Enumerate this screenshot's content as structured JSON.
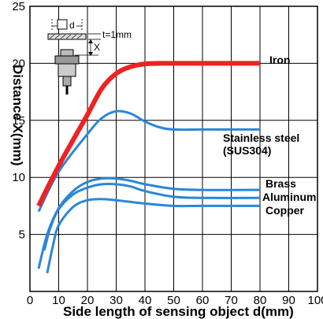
{
  "chart_data": {
    "type": "line",
    "xlabel": "Side length of sensing object d(mm)",
    "ylabel": "Distance X(mm)",
    "xlim": [
      0,
      100
    ],
    "ylim": [
      0,
      25
    ],
    "x_ticks": [
      "0",
      "10",
      "20",
      "30",
      "40",
      "50",
      "60",
      "70",
      "80",
      "90",
      "100"
    ],
    "y_ticks": [
      "5",
      "10",
      "15",
      "20",
      "25"
    ],
    "grid": true,
    "series": [
      {
        "name": "Iron",
        "color": "#ee2222",
        "x": [
          3,
          10,
          20,
          25,
          30,
          35,
          40,
          45,
          50,
          60,
          70,
          80
        ],
        "y": [
          7.5,
          11,
          15.5,
          17.8,
          19.1,
          19.7,
          19.95,
          20,
          20,
          20,
          20,
          20
        ]
      },
      {
        "name": "Stainless steel (SUS304)",
        "color": "#2b86d8",
        "x": [
          3,
          10,
          20,
          25,
          30,
          35,
          40,
          45,
          50,
          60,
          70,
          80
        ],
        "y": [
          7,
          10.5,
          13.8,
          15.2,
          15.8,
          15.6,
          14.9,
          14.4,
          14.2,
          14.2,
          14.2,
          14.2
        ]
      },
      {
        "name": "Brass",
        "color": "#2b86d8",
        "x": [
          3,
          6,
          10,
          15,
          20,
          25,
          30,
          35,
          40,
          50,
          60,
          80
        ],
        "y": [
          2,
          5,
          7.3,
          8.8,
          9.6,
          9.9,
          9.9,
          9.7,
          9.4,
          9.0,
          8.9,
          8.9
        ]
      },
      {
        "name": "Aluminum",
        "color": "#2b86d8",
        "x": [
          5,
          7,
          10,
          15,
          20,
          25,
          30,
          35,
          40,
          50,
          60,
          80
        ],
        "y": [
          3.6,
          5.5,
          7.2,
          8.5,
          9.1,
          9.4,
          9.4,
          9.2,
          8.8,
          8.3,
          8.2,
          8.2
        ]
      },
      {
        "name": "Copper",
        "color": "#2b86d8",
        "x": [
          6,
          8,
          10,
          15,
          20,
          25,
          30,
          40,
          50,
          60,
          80
        ],
        "y": [
          1.6,
          4.0,
          5.8,
          7.4,
          8.0,
          8.1,
          8.0,
          7.7,
          7.5,
          7.5,
          7.5
        ]
      }
    ],
    "labels": {
      "iron": "Iron",
      "stainless_1": "Stainless steel",
      "stainless_2": "(SUS304)",
      "brass": "Brass",
      "aluminum": "Aluminum",
      "copper": "Copper"
    },
    "inset": {
      "d_label": "d",
      "t_label": "t=1mm",
      "x_label": "X"
    }
  }
}
